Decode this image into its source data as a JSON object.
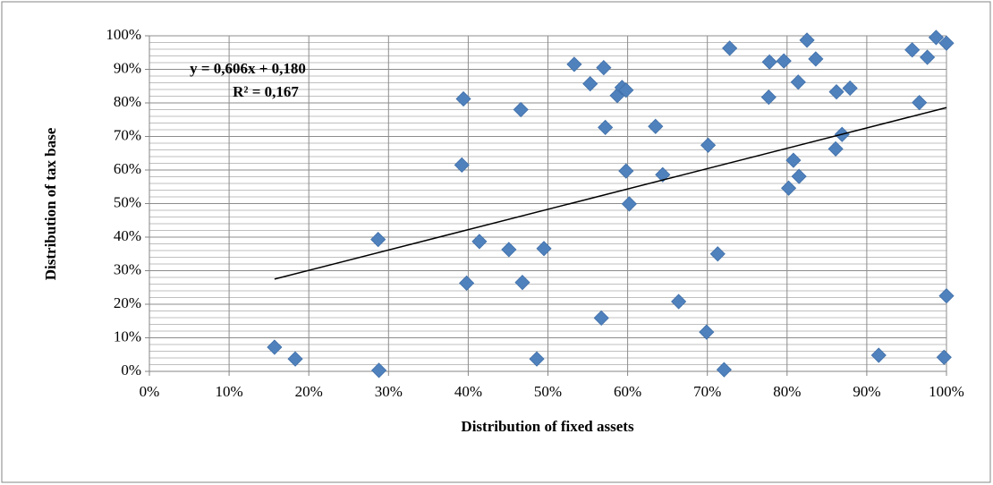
{
  "chart_data": {
    "type": "scatter",
    "x_label": "Distribution of fixed assets",
    "y_label": "Distribution of tax base",
    "annotations": [
      "y = 0,606x + 0,180",
      "R² = 0,167"
    ],
    "color": "#4f81bd",
    "xlim": [
      0,
      100
    ],
    "ylim": [
      0,
      100
    ],
    "xticks": [
      {
        "value": 0,
        "label": "0%"
      },
      {
        "value": 10,
        "label": "10%"
      },
      {
        "value": 20,
        "label": "20%"
      },
      {
        "value": 30,
        "label": "30%"
      },
      {
        "value": 40,
        "label": "40%"
      },
      {
        "value": 50,
        "label": "50%"
      },
      {
        "value": 60,
        "label": "60%"
      },
      {
        "value": 70,
        "label": "70%"
      },
      {
        "value": 80,
        "label": "80%"
      },
      {
        "value": 90,
        "label": "90%"
      },
      {
        "value": 100,
        "label": "100%"
      }
    ],
    "yticks": [
      {
        "value": 0,
        "label": "0%"
      },
      {
        "value": 10,
        "label": "10%"
      },
      {
        "value": 20,
        "label": "20%"
      },
      {
        "value": 30,
        "label": "30%"
      },
      {
        "value": 40,
        "label": "40%"
      },
      {
        "value": 50,
        "label": "50%"
      },
      {
        "value": 60,
        "label": "60%"
      },
      {
        "value": 70,
        "label": "70%"
      },
      {
        "value": 80,
        "label": "80%"
      },
      {
        "value": 90,
        "label": "90%"
      },
      {
        "value": 100,
        "label": "100%"
      }
    ],
    "grid": true,
    "minor_grid": true,
    "x": [
      15.7,
      18.3,
      28.8,
      28.7,
      39.4,
      39.2,
      39.8,
      41.4,
      45.1,
      49.5,
      46.6,
      46.8,
      48.6,
      53.3,
      55.3,
      57.0,
      57.2,
      56.7,
      58.7,
      59.3,
      59.8,
      59.8,
      60.2,
      64.4,
      63.5,
      66.4,
      70.1,
      69.9,
      71.3,
      72.1,
      72.8,
      77.8,
      79.6,
      77.7,
      81.4,
      82.5,
      83.6,
      86.2,
      87.9,
      86.9,
      86.1,
      80.8,
      81.5,
      80.2,
      91.5,
      95.7,
      97.6,
      98.7,
      100,
      96.6,
      100,
      99.7
    ],
    "values": [
      7.2,
      3.7,
      0.3,
      39.3,
      81.2,
      61.5,
      26.3,
      38.7,
      36.3,
      36.6,
      78.0,
      26.5,
      3.7,
      91.5,
      85.7,
      90.5,
      72.7,
      15.9,
      82.2,
      84.6,
      83.8,
      59.7,
      49.9,
      58.6,
      73.0,
      20.8,
      67.4,
      11.7,
      35.0,
      0.5,
      96.3,
      92.2,
      92.5,
      81.7,
      86.2,
      98.7,
      93.1,
      83.3,
      84.4,
      70.6,
      66.3,
      62.9,
      58.1,
      54.6,
      4.8,
      95.8,
      93.6,
      99.5,
      97.8,
      80.1,
      22.5,
      4.2
    ],
    "trendline": {
      "x": [
        15.7,
        100
      ],
      "y": [
        27.5,
        78.6
      ],
      "color": "#000000"
    }
  }
}
